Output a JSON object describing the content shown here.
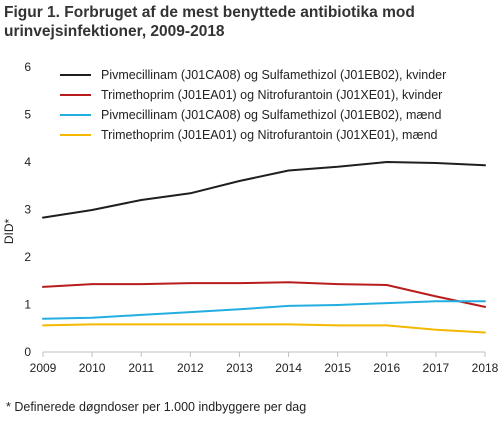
{
  "title_line1": "Figur 1. Forbruget af de mest benyttede antibiotika mod",
  "title_line2": "urinvejsinfektioner, 2009-2018",
  "footnote": "* Definerede døgndoser per 1.000 indbyggere per dag",
  "chart_data": {
    "type": "line",
    "title": "Figur 1. Forbruget af de mest benyttede antibiotika mod urinvejsinfektioner, 2009-2018",
    "xlabel": "",
    "ylabel": "DID*",
    "x": [
      "2009",
      "2010",
      "2011",
      "2012",
      "2013",
      "2014",
      "2015",
      "2016",
      "2017",
      "2018"
    ],
    "ylim": [
      0,
      6
    ],
    "yticks": [
      "0",
      "1",
      "2",
      "3",
      "4",
      "5",
      "6"
    ],
    "grid": false,
    "legend_position": "top",
    "series": [
      {
        "name": "Pivmecillinam (J01CA08) og Sulfamethizol (J01EB02), kvinder",
        "color": "#1f1f1f",
        "values": [
          2.83,
          2.99,
          3.2,
          3.34,
          3.6,
          3.82,
          3.9,
          4.0,
          3.98,
          3.93
        ]
      },
      {
        "name": "Trimethoprim (J01EA01) og Nitrofurantoin (J01XE01), kvinder",
        "color": "#b81c1c",
        "values": [
          1.37,
          1.43,
          1.43,
          1.45,
          1.45,
          1.47,
          1.43,
          1.41,
          1.17,
          0.95
        ]
      },
      {
        "name": "Pivmecillinam (J01CA08) og Sulfamethizol (J01EB02), mænd",
        "color": "#22aee0",
        "values": [
          0.7,
          0.72,
          0.78,
          0.84,
          0.9,
          0.97,
          0.99,
          1.03,
          1.07,
          1.07
        ]
      },
      {
        "name": "Trimethoprim (J01EA01) og Nitrofurantoin (J01XE01), mænd",
        "color": "#f5b800",
        "values": [
          0.56,
          0.58,
          0.58,
          0.58,
          0.58,
          0.58,
          0.56,
          0.56,
          0.47,
          0.41
        ]
      }
    ]
  }
}
